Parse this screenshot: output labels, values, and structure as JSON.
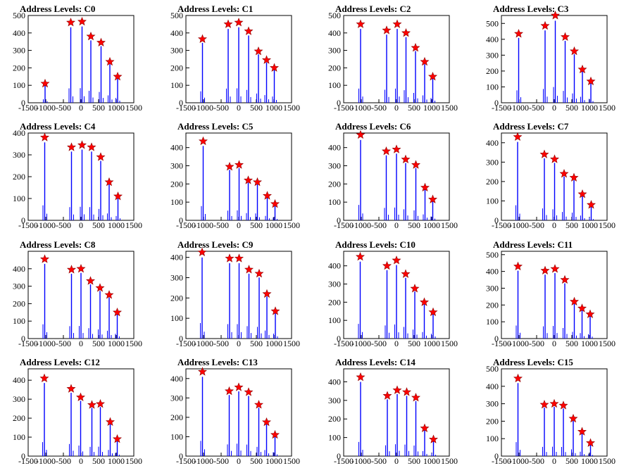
{
  "figure": {
    "x_ticks": [
      -1500,
      -1000,
      -500,
      0,
      500,
      1000,
      1500
    ],
    "x_tick_labels": [
      "-1500",
      "-1000",
      "-500",
      "0",
      "500",
      "1000",
      "1500"
    ],
    "xlim": [
      -1500,
      1500
    ],
    "colors": {
      "bars": "#0000ff",
      "star_fill": "#ff0000",
      "star_edge": "#8b0000",
      "axes": "#000000"
    }
  },
  "chart_data": [
    {
      "type": "bar",
      "title": "Address Levels: C0",
      "ylim": [
        0,
        500
      ],
      "y_ticks": [
        0,
        100,
        200,
        300,
        400,
        500
      ],
      "y_tick_labels": [
        "0",
        "100",
        "200",
        "300",
        "400",
        "500"
      ],
      "peaks": [
        {
          "x": -1020,
          "y": 110
        },
        {
          "x": -290,
          "y": 460
        },
        {
          "x": 30,
          "y": 465
        },
        {
          "x": 280,
          "y": 380
        },
        {
          "x": 570,
          "y": 345
        },
        {
          "x": 820,
          "y": 235
        },
        {
          "x": 1040,
          "y": 150
        }
      ]
    },
    {
      "type": "bar",
      "title": "Address Levels: C1",
      "ylim": [
        0,
        500
      ],
      "y_ticks": [
        0,
        100,
        200,
        300,
        400,
        500
      ],
      "y_tick_labels": [
        "0",
        "100",
        "200",
        "300",
        "400",
        "500"
      ],
      "peaks": [
        {
          "x": -1030,
          "y": 365
        },
        {
          "x": -300,
          "y": 450
        },
        {
          "x": 0,
          "y": 460
        },
        {
          "x": 280,
          "y": 410
        },
        {
          "x": 560,
          "y": 295
        },
        {
          "x": 790,
          "y": 245
        },
        {
          "x": 1010,
          "y": 200
        }
      ]
    },
    {
      "type": "bar",
      "title": "Address Levels: C2",
      "ylim": [
        0,
        500
      ],
      "y_ticks": [
        0,
        100,
        200,
        300,
        400,
        500
      ],
      "y_tick_labels": [
        "0",
        "100",
        "200",
        "300",
        "400",
        "500"
      ],
      "peaks": [
        {
          "x": -1020,
          "y": 450
        },
        {
          "x": -280,
          "y": 415
        },
        {
          "x": 20,
          "y": 450
        },
        {
          "x": 270,
          "y": 400
        },
        {
          "x": 540,
          "y": 315
        },
        {
          "x": 800,
          "y": 235
        },
        {
          "x": 1030,
          "y": 150
        }
      ]
    },
    {
      "type": "bar",
      "title": "Address Levels: C3",
      "ylim": [
        0,
        550
      ],
      "y_ticks": [
        0,
        100,
        200,
        300,
        400,
        500
      ],
      "y_tick_labels": [
        "0",
        "100",
        "200",
        "300",
        "400",
        "500"
      ],
      "peaks": [
        {
          "x": -1010,
          "y": 435
        },
        {
          "x": -260,
          "y": 485
        },
        {
          "x": 30,
          "y": 550
        },
        {
          "x": 310,
          "y": 415
        },
        {
          "x": 570,
          "y": 325
        },
        {
          "x": 800,
          "y": 210
        },
        {
          "x": 1040,
          "y": 135
        }
      ]
    },
    {
      "type": "bar",
      "title": "Address Levels: C4",
      "ylim": [
        0,
        400
      ],
      "y_ticks": [
        0,
        100,
        200,
        300,
        400
      ],
      "y_tick_labels": [
        "0",
        "100",
        "200",
        "300",
        "400"
      ],
      "peaks": [
        {
          "x": -1030,
          "y": 380
        },
        {
          "x": -270,
          "y": 335
        },
        {
          "x": 30,
          "y": 345
        },
        {
          "x": 300,
          "y": 335
        },
        {
          "x": 560,
          "y": 290
        },
        {
          "x": 800,
          "y": 175
        },
        {
          "x": 1050,
          "y": 110
        }
      ]
    },
    {
      "type": "bar",
      "title": "Address Levels: C5",
      "ylim": [
        0,
        480
      ],
      "y_ticks": [
        0,
        100,
        200,
        300,
        400
      ],
      "y_tick_labels": [
        "0",
        "100",
        "200",
        "300",
        "400"
      ],
      "peaks": [
        {
          "x": -1010,
          "y": 435
        },
        {
          "x": -260,
          "y": 295
        },
        {
          "x": 10,
          "y": 305
        },
        {
          "x": 270,
          "y": 220
        },
        {
          "x": 530,
          "y": 210
        },
        {
          "x": 810,
          "y": 135
        },
        {
          "x": 1030,
          "y": 90
        }
      ]
    },
    {
      "type": "bar",
      "title": "Address Levels: C6",
      "ylim": [
        0,
        480
      ],
      "y_ticks": [
        0,
        100,
        200,
        300,
        400
      ],
      "y_tick_labels": [
        "0",
        "100",
        "200",
        "300",
        "400"
      ],
      "peaks": [
        {
          "x": -1020,
          "y": 470
        },
        {
          "x": -290,
          "y": 380
        },
        {
          "x": 0,
          "y": 390
        },
        {
          "x": 260,
          "y": 335
        },
        {
          "x": 550,
          "y": 305
        },
        {
          "x": 810,
          "y": 180
        },
        {
          "x": 1030,
          "y": 115
        }
      ]
    },
    {
      "type": "bar",
      "title": "Address Levels: C7",
      "ylim": [
        0,
        450
      ],
      "y_ticks": [
        0,
        100,
        200,
        300,
        400
      ],
      "y_tick_labels": [
        "0",
        "100",
        "200",
        "300",
        "400"
      ],
      "peaks": [
        {
          "x": -1040,
          "y": 430
        },
        {
          "x": -280,
          "y": 340
        },
        {
          "x": 10,
          "y": 315
        },
        {
          "x": 280,
          "y": 240
        },
        {
          "x": 560,
          "y": 220
        },
        {
          "x": 800,
          "y": 135
        },
        {
          "x": 1050,
          "y": 80
        }
      ]
    },
    {
      "type": "bar",
      "title": "Address Levels: C8",
      "ylim": [
        0,
        500
      ],
      "y_ticks": [
        0,
        100,
        200,
        300,
        400
      ],
      "y_tick_labels": [
        "0",
        "100",
        "200",
        "300",
        "400"
      ],
      "peaks": [
        {
          "x": -1030,
          "y": 455
        },
        {
          "x": -270,
          "y": 395
        },
        {
          "x": 0,
          "y": 400
        },
        {
          "x": 270,
          "y": 330
        },
        {
          "x": 540,
          "y": 290
        },
        {
          "x": 800,
          "y": 250
        },
        {
          "x": 1030,
          "y": 150
        }
      ]
    },
    {
      "type": "bar",
      "title": "Address Levels: C9",
      "ylim": [
        0,
        430
      ],
      "y_ticks": [
        0,
        100,
        200,
        300,
        400
      ],
      "y_tick_labels": [
        "0",
        "100",
        "200",
        "300",
        "400"
      ],
      "peaks": [
        {
          "x": -1040,
          "y": 425
        },
        {
          "x": -260,
          "y": 395
        },
        {
          "x": 10,
          "y": 395
        },
        {
          "x": 290,
          "y": 340
        },
        {
          "x": 580,
          "y": 320
        },
        {
          "x": 800,
          "y": 220
        },
        {
          "x": 1040,
          "y": 135
        }
      ]
    },
    {
      "type": "bar",
      "title": "Address Levels: C10",
      "ylim": [
        0,
        480
      ],
      "y_ticks": [
        0,
        100,
        200,
        300,
        400
      ],
      "y_tick_labels": [
        "0",
        "100",
        "200",
        "300",
        "400"
      ],
      "peaks": [
        {
          "x": -1030,
          "y": 450
        },
        {
          "x": -270,
          "y": 400
        },
        {
          "x": 0,
          "y": 430
        },
        {
          "x": 260,
          "y": 355
        },
        {
          "x": 520,
          "y": 275
        },
        {
          "x": 790,
          "y": 200
        },
        {
          "x": 1040,
          "y": 145
        }
      ]
    },
    {
      "type": "bar",
      "title": "Address Levels: C11",
      "ylim": [
        0,
        520
      ],
      "y_ticks": [
        0,
        100,
        200,
        300,
        400,
        500
      ],
      "y_tick_labels": [
        "0",
        "100",
        "200",
        "300",
        "400",
        "500"
      ],
      "peaks": [
        {
          "x": -1030,
          "y": 430
        },
        {
          "x": -260,
          "y": 405
        },
        {
          "x": 20,
          "y": 415
        },
        {
          "x": 300,
          "y": 350
        },
        {
          "x": 570,
          "y": 220
        },
        {
          "x": 790,
          "y": 180
        },
        {
          "x": 1020,
          "y": 145
        }
      ]
    },
    {
      "type": "bar",
      "title": "Address Levels: C12",
      "ylim": [
        0,
        460
      ],
      "y_ticks": [
        0,
        100,
        200,
        300,
        400
      ],
      "y_tick_labels": [
        "0",
        "100",
        "200",
        "300",
        "400"
      ],
      "peaks": [
        {
          "x": -1040,
          "y": 410
        },
        {
          "x": -280,
          "y": 355
        },
        {
          "x": -10,
          "y": 310
        },
        {
          "x": 310,
          "y": 270
        },
        {
          "x": 550,
          "y": 275
        },
        {
          "x": 830,
          "y": 180
        },
        {
          "x": 1030,
          "y": 90
        }
      ]
    },
    {
      "type": "bar",
      "title": "Address Levels: C13",
      "ylim": [
        0,
        450
      ],
      "y_ticks": [
        0,
        100,
        200,
        300,
        400
      ],
      "y_tick_labels": [
        "0",
        "100",
        "200",
        "300",
        "400"
      ],
      "peaks": [
        {
          "x": -1030,
          "y": 435
        },
        {
          "x": -270,
          "y": 335
        },
        {
          "x": 0,
          "y": 355
        },
        {
          "x": 280,
          "y": 330
        },
        {
          "x": 570,
          "y": 265
        },
        {
          "x": 790,
          "y": 175
        },
        {
          "x": 1030,
          "y": 110
        }
      ]
    },
    {
      "type": "bar",
      "title": "Address Levels: C14",
      "ylim": [
        0,
        470
      ],
      "y_ticks": [
        0,
        100,
        200,
        300,
        400
      ],
      "y_tick_labels": [
        "0",
        "100",
        "200",
        "300",
        "400"
      ],
      "peaks": [
        {
          "x": -1020,
          "y": 425
        },
        {
          "x": -260,
          "y": 325
        },
        {
          "x": 20,
          "y": 355
        },
        {
          "x": 290,
          "y": 345
        },
        {
          "x": 550,
          "y": 315
        },
        {
          "x": 800,
          "y": 150
        },
        {
          "x": 1050,
          "y": 90
        }
      ]
    },
    {
      "type": "bar",
      "title": "Address Levels: C15",
      "ylim": [
        0,
        500
      ],
      "y_ticks": [
        0,
        100,
        200,
        300,
        400,
        500
      ],
      "y_tick_labels": [
        "0",
        "100",
        "200",
        "300",
        "400",
        "500"
      ],
      "peaks": [
        {
          "x": -1030,
          "y": 445
        },
        {
          "x": -280,
          "y": 295
        },
        {
          "x": 0,
          "y": 300
        },
        {
          "x": 260,
          "y": 290
        },
        {
          "x": 540,
          "y": 215
        },
        {
          "x": 790,
          "y": 140
        },
        {
          "x": 1030,
          "y": 75
        }
      ]
    }
  ]
}
